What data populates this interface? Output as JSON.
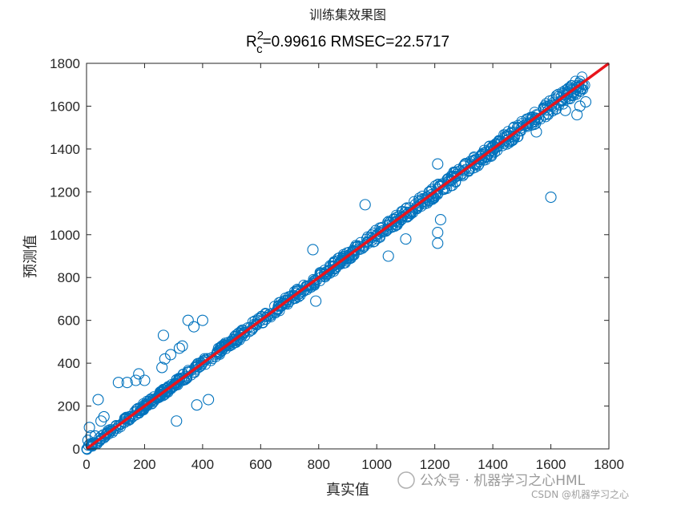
{
  "chart_data": {
    "type": "scatter",
    "title": "训练集效果图",
    "subtitle": {
      "prefix": "R",
      "superscript": "2",
      "subscript": "c",
      "rest": "=0.99616  RMSEC=22.5717"
    },
    "xlabel": "真实值",
    "ylabel": "预测值",
    "xlim": [
      0,
      1800
    ],
    "ylim": [
      0,
      1800
    ],
    "xticks": [
      "0",
      "200",
      "400",
      "600",
      "800",
      "1000",
      "1200",
      "1400",
      "1600",
      "1800"
    ],
    "yticks": [
      "0",
      "200",
      "400",
      "600",
      "800",
      "1000",
      "1200",
      "1400",
      "1600",
      "1800"
    ],
    "marker_color": "#0072BD",
    "line_color": "#E8141B",
    "series": [
      {
        "name": "训练集",
        "marker": "circle-open",
        "points": [
          [
            5,
            40
          ],
          [
            10,
            100
          ],
          [
            15,
            60
          ],
          [
            20,
            20
          ],
          [
            30,
            60
          ],
          [
            40,
            230
          ],
          [
            50,
            130
          ],
          [
            60,
            150
          ],
          [
            110,
            310
          ],
          [
            140,
            310
          ],
          [
            170,
            320
          ],
          [
            180,
            350
          ],
          [
            200,
            320
          ],
          [
            260,
            380
          ],
          [
            265,
            530
          ],
          [
            270,
            420
          ],
          [
            290,
            440
          ],
          [
            320,
            470
          ],
          [
            330,
            480
          ],
          [
            350,
            600
          ],
          [
            370,
            570
          ],
          [
            400,
            600
          ],
          [
            310,
            130
          ],
          [
            380,
            205
          ],
          [
            420,
            230
          ],
          [
            780,
            930
          ],
          [
            790,
            690
          ],
          [
            960,
            1140
          ],
          [
            1040,
            900
          ],
          [
            1100,
            980
          ],
          [
            1210,
            1330
          ],
          [
            1210,
            1010
          ],
          [
            1210,
            960
          ],
          [
            1220,
            1070
          ],
          [
            1260,
            1230
          ],
          [
            1300,
            1320
          ],
          [
            1600,
            1175
          ],
          [
            1550,
            1480
          ],
          [
            1650,
            1580
          ],
          [
            1690,
            1560
          ],
          [
            1700,
            1600
          ],
          [
            1720,
            1620
          ]
        ]
      },
      {
        "name": "y=x",
        "type": "line",
        "x": [
          0,
          1800
        ],
        "y": [
          0,
          1800
        ]
      }
    ]
  },
  "watermark": {
    "main": "公众号 · 机器学习之心HML",
    "credit": "CSDN @机器学习之心"
  }
}
